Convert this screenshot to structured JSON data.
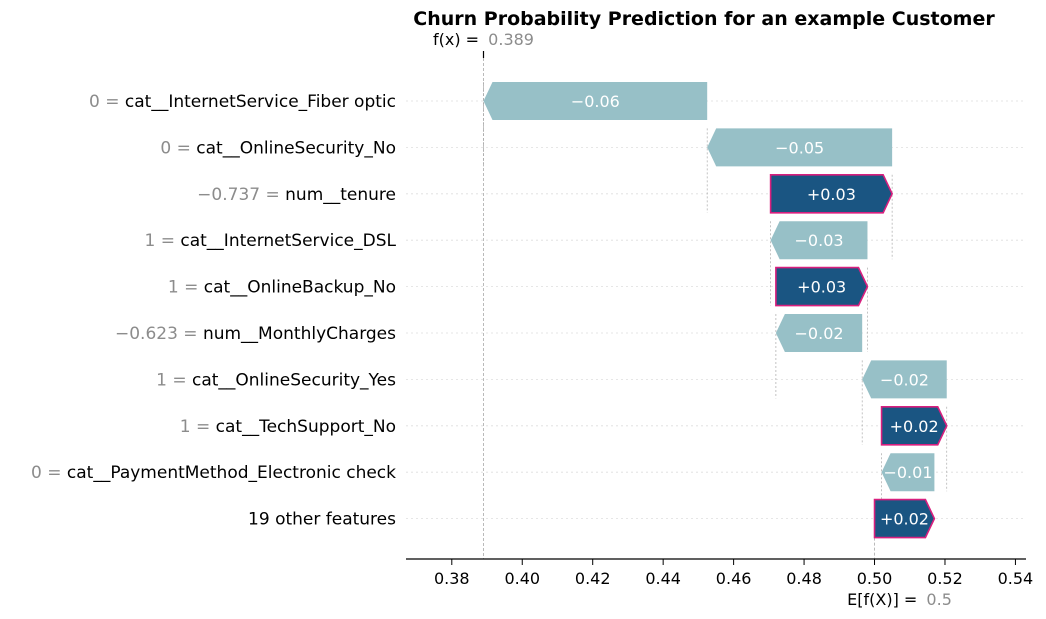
{
  "chart_data": {
    "type": "waterfall",
    "title": "Churn Probability Prediction for an example Customer",
    "fx": {
      "label": "f(x) =",
      "value": "0.389",
      "numeric": 0.389
    },
    "expected": {
      "label": "E[f(X)] =",
      "value": "0.5",
      "numeric": 0.5
    },
    "xlim": [
      0.367,
      0.543
    ],
    "xticks": [
      {
        "value": 0.38,
        "label": "0.38"
      },
      {
        "value": 0.4,
        "label": "0.40"
      },
      {
        "value": 0.42,
        "label": "0.42"
      },
      {
        "value": 0.44,
        "label": "0.44"
      },
      {
        "value": 0.46,
        "label": "0.46"
      },
      {
        "value": 0.48,
        "label": "0.48"
      },
      {
        "value": 0.5,
        "label": "0.50"
      },
      {
        "value": 0.52,
        "label": "0.52"
      },
      {
        "value": 0.54,
        "label": "0.54"
      }
    ],
    "features": [
      {
        "name": "cat__InternetService_Fiber optic",
        "value_text": "0 =",
        "start": 0.4525,
        "end": 0.389,
        "label": "−0.06"
      },
      {
        "name": "cat__OnlineSecurity_No",
        "value_text": "0 =",
        "start": 0.505,
        "end": 0.4525,
        "label": "−0.05"
      },
      {
        "name": "num__tenure",
        "value_text": "−0.737 =",
        "start": 0.4705,
        "end": 0.505,
        "label": "+0.03"
      },
      {
        "name": "cat__InternetService_DSL",
        "value_text": "1 =",
        "start": 0.498,
        "end": 0.4705,
        "label": "−0.03"
      },
      {
        "name": "cat__OnlineBackup_No",
        "value_text": "1 =",
        "start": 0.472,
        "end": 0.498,
        "label": "+0.03"
      },
      {
        "name": "num__MonthlyCharges",
        "value_text": "−0.623 =",
        "start": 0.4965,
        "end": 0.472,
        "label": "−0.02"
      },
      {
        "name": "cat__OnlineSecurity_Yes",
        "value_text": "1 =",
        "start": 0.5205,
        "end": 0.4965,
        "label": "−0.02"
      },
      {
        "name": "cat__TechSupport_No",
        "value_text": "1 =",
        "start": 0.502,
        "end": 0.5205,
        "label": "+0.02"
      },
      {
        "name": "cat__PaymentMethod_Electronic check",
        "value_text": "0 =",
        "start": 0.517,
        "end": 0.502,
        "label": "−0.01"
      },
      {
        "name": "19 other features",
        "value_text": "",
        "start": 0.5,
        "end": 0.517,
        "label": "+0.02"
      }
    ],
    "colors": {
      "positive_fill": "#1a5582",
      "positive_edge": "#d81f7e",
      "negative_fill": "#97c0c7",
      "grid": "#dddddd",
      "axis": "#000000",
      "guide": "#aaaaaa"
    }
  }
}
